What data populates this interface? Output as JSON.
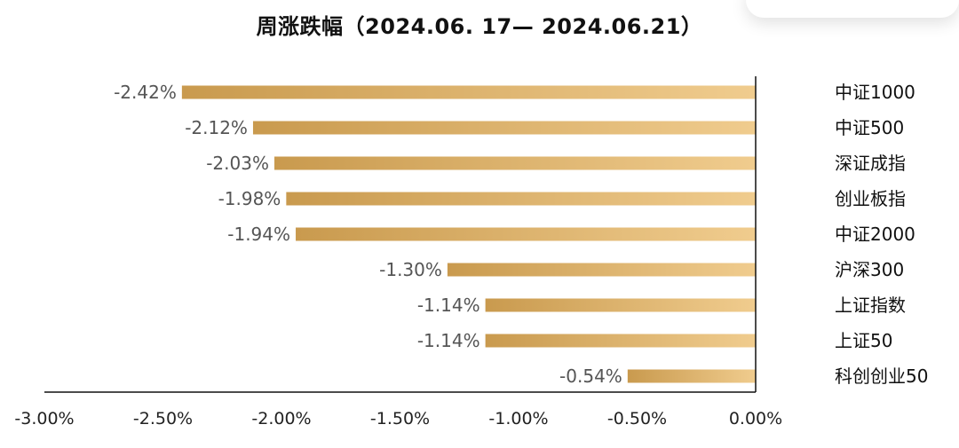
{
  "chart_data": {
    "type": "bar",
    "orientation": "horizontal",
    "title": "周涨跌幅（2024.06. 17— 2024.06.21）",
    "categories": [
      "中证1000",
      "中证500",
      "深证成指",
      "创业板指",
      "中证2000",
      "沪深300",
      "上证指数",
      "上证50",
      "科创创业50"
    ],
    "values": [
      -2.42,
      -2.12,
      -2.03,
      -1.98,
      -1.94,
      -1.3,
      -1.14,
      -1.14,
      -0.54
    ],
    "value_labels": [
      "-2.42%",
      "-2.12%",
      "-2.03%",
      "-1.98%",
      "-1.94%",
      "-1.30%",
      "-1.14%",
      "-1.14%",
      "-0.54%"
    ],
    "xlim": [
      -3.0,
      0.0
    ],
    "xticks": [
      -3.0,
      -2.5,
      -2.0,
      -1.5,
      -1.0,
      -0.5,
      0.0
    ],
    "xtick_labels": [
      "-3.00%",
      "-2.50%",
      "-2.00%",
      "-1.50%",
      "-1.00%",
      "-0.50%",
      "0.00%"
    ],
    "xlabel": "",
    "ylabel": "",
    "grid": false,
    "colors": {
      "bar_dark": "#C99A4E",
      "bar_light": "#F0CC8E"
    }
  }
}
